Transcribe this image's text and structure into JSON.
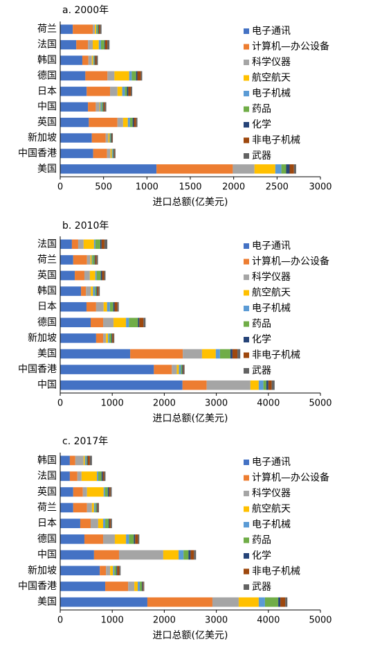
{
  "chart_data": [
    {
      "type": "bar",
      "horizontal": true,
      "title": "a. 2000年",
      "x_label": "进口总额(亿美元)",
      "categories": [
        "荷兰",
        "法国",
        "韩国",
        "德国",
        "日本",
        "中国",
        "英国",
        "新加坡",
        "中国香港",
        "美国"
      ],
      "xlim": [
        0,
        3000
      ],
      "xticks": [
        0,
        500,
        1000,
        1500,
        2000,
        2500,
        3000
      ],
      "series": [
        {
          "name": "电子通讯",
          "color": "#4472c4",
          "values": [
            145,
            185,
            255,
            290,
            305,
            320,
            330,
            365,
            380,
            1110
          ]
        },
        {
          "name": "计算机—办公设备",
          "color": "#ed7d31",
          "values": [
            230,
            135,
            70,
            255,
            270,
            90,
            330,
            160,
            160,
            880
          ]
        },
        {
          "name": "科学仪器",
          "color": "#a5a5a5",
          "values": [
            25,
            55,
            40,
            80,
            85,
            45,
            65,
            30,
            40,
            250
          ]
        },
        {
          "name": "航空航天",
          "color": "#ffc000",
          "values": [
            15,
            70,
            15,
            170,
            55,
            8,
            55,
            15,
            15,
            240
          ]
        },
        {
          "name": "电子机械",
          "color": "#5b9bd5",
          "values": [
            8,
            25,
            8,
            30,
            30,
            15,
            25,
            8,
            10,
            70
          ]
        },
        {
          "name": "药品",
          "color": "#70ad47",
          "values": [
            15,
            40,
            8,
            50,
            25,
            15,
            30,
            8,
            8,
            55
          ]
        },
        {
          "name": "化学",
          "color": "#264478",
          "values": [
            8,
            8,
            8,
            15,
            15,
            8,
            15,
            8,
            8,
            40
          ]
        },
        {
          "name": "非电子机械",
          "color": "#9e480e",
          "values": [
            15,
            25,
            15,
            40,
            30,
            15,
            25,
            8,
            8,
            50
          ]
        },
        {
          "name": "武器",
          "color": "#636363",
          "values": [
            15,
            25,
            15,
            15,
            15,
            15,
            15,
            5,
            8,
            25
          ]
        }
      ]
    },
    {
      "type": "bar",
      "horizontal": true,
      "title": "b. 2010年",
      "x_label": "进口总额(亿美元)",
      "categories": [
        "法国",
        "荷兰",
        "英国",
        "韩国",
        "日本",
        "德国",
        "新加坡",
        "美国",
        "中国香港",
        "中国"
      ],
      "xlim": [
        0,
        5000
      ],
      "xticks": [
        0,
        1000,
        2000,
        3000,
        4000,
        5000
      ],
      "series": [
        {
          "name": "电子通讯",
          "color": "#4472c4",
          "values": [
            225,
            250,
            280,
            400,
            505,
            585,
            690,
            1345,
            1800,
            2350
          ]
        },
        {
          "name": "计算机—办公设备",
          "color": "#ed7d31",
          "values": [
            120,
            265,
            185,
            95,
            185,
            240,
            135,
            1010,
            345,
            465
          ]
        },
        {
          "name": "科学仪器",
          "color": "#a5a5a5",
          "values": [
            105,
            65,
            105,
            95,
            145,
            200,
            55,
            370,
            95,
            840
          ]
        },
        {
          "name": "航空航天",
          "color": "#ffc000",
          "values": [
            200,
            25,
            105,
            40,
            65,
            240,
            40,
            265,
            40,
            160
          ]
        },
        {
          "name": "电子机械",
          "color": "#5b9bd5",
          "values": [
            25,
            15,
            25,
            40,
            55,
            55,
            25,
            80,
            40,
            90
          ]
        },
        {
          "name": "药品",
          "color": "#70ad47",
          "values": [
            95,
            40,
            80,
            25,
            65,
            175,
            40,
            200,
            25,
            55
          ]
        },
        {
          "name": "化学",
          "color": "#264478",
          "values": [
            25,
            15,
            25,
            15,
            25,
            25,
            15,
            40,
            15,
            40
          ]
        },
        {
          "name": "非电子机械",
          "color": "#9e480e",
          "values": [
            55,
            25,
            40,
            25,
            55,
            80,
            25,
            95,
            15,
            65
          ]
        },
        {
          "name": "武器",
          "color": "#636363",
          "values": [
            55,
            25,
            25,
            25,
            25,
            40,
            15,
            55,
            15,
            55
          ]
        }
      ]
    },
    {
      "type": "bar",
      "horizontal": true,
      "title": "c. 2017年",
      "x_label": "进口总额(亿美元)",
      "categories": [
        "韩国",
        "法国",
        "英国",
        "荷兰",
        "日本",
        "德国",
        "中国",
        "新加坡",
        "中国香港",
        "美国"
      ],
      "xlim": [
        0,
        5000
      ],
      "xticks": [
        0,
        1000,
        2000,
        3000,
        4000,
        5000
      ],
      "series": [
        {
          "name": "电子通讯",
          "color": "#4472c4",
          "values": [
            185,
            185,
            250,
            250,
            385,
            465,
            650,
            760,
            865,
            1675
          ]
        },
        {
          "name": "计算机—办公设备",
          "color": "#ed7d31",
          "values": [
            105,
            145,
            185,
            265,
            200,
            360,
            480,
            120,
            440,
            1250
          ]
        },
        {
          "name": "科学仪器",
          "color": "#a5a5a5",
          "values": [
            160,
            80,
            80,
            95,
            145,
            225,
            850,
            80,
            120,
            505
          ]
        },
        {
          "name": "航空航天",
          "color": "#ffc000",
          "values": [
            25,
            295,
            320,
            40,
            95,
            215,
            295,
            55,
            65,
            385
          ]
        },
        {
          "name": "电子机械",
          "color": "#5b9bd5",
          "values": [
            25,
            25,
            25,
            25,
            40,
            55,
            95,
            25,
            40,
            120
          ]
        },
        {
          "name": "药品",
          "color": "#70ad47",
          "values": [
            15,
            65,
            55,
            25,
            65,
            95,
            95,
            40,
            40,
            255
          ]
        },
        {
          "name": "化学",
          "color": "#264478",
          "values": [
            15,
            25,
            25,
            15,
            15,
            25,
            40,
            15,
            15,
            40
          ]
        },
        {
          "name": "非电子机械",
          "color": "#9e480e",
          "values": [
            40,
            25,
            25,
            15,
            25,
            55,
            65,
            40,
            15,
            95
          ]
        },
        {
          "name": "武器",
          "color": "#636363",
          "values": [
            40,
            25,
            25,
            15,
            25,
            25,
            40,
            25,
            15,
            40
          ]
        }
      ]
    }
  ]
}
